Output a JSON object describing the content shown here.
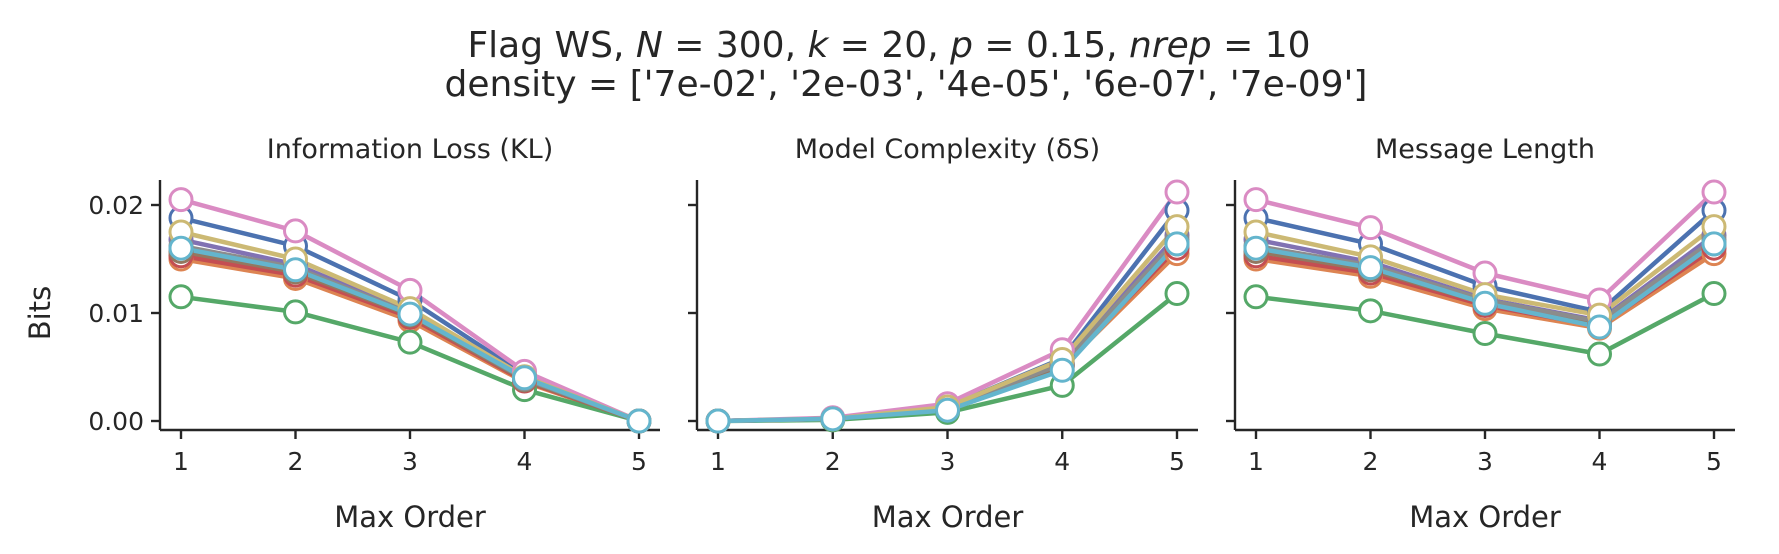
{
  "figure": {
    "suptitle_line1": "Flag WS, N = 300, k = 20, p = 0.15, nrep = 10",
    "suptitle_line2": "density = ['7e-02', '2e-03', '4e-05', '6e-07', '7e-09']",
    "colors": [
      "#4c72b0",
      "#dd8452",
      "#55a868",
      "#c44e52",
      "#8172b3",
      "#937860",
      "#da8bc3",
      "#8c8c8c",
      "#ccb974",
      "#64b5cd"
    ]
  },
  "chart_data": [
    {
      "type": "line",
      "title": "Information Loss (KL)",
      "xlabel": "Max Order",
      "ylabel": "Bits",
      "x": [
        1,
        2,
        3,
        4,
        5
      ],
      "xticks": [
        "1",
        "2",
        "3",
        "4",
        "5"
      ],
      "yticks": [
        "0.00",
        "0.01",
        "0.02"
      ],
      "ylim": [
        -0.001,
        0.0225
      ],
      "grid": false,
      "legend": "none",
      "series": [
        {
          "values": [
            0.0188,
            0.0162,
            0.0112,
            0.0043,
            0.0
          ]
        },
        {
          "values": [
            0.015,
            0.0132,
            0.0093,
            0.0036,
            0.0
          ]
        },
        {
          "values": [
            0.0115,
            0.0101,
            0.0073,
            0.0029,
            0.0
          ]
        },
        {
          "values": [
            0.0153,
            0.0135,
            0.0096,
            0.0037,
            0.0
          ]
        },
        {
          "values": [
            0.0168,
            0.0145,
            0.0101,
            0.0039,
            0.0
          ]
        },
        {
          "values": [
            0.0157,
            0.0138,
            0.0098,
            0.0038,
            0.0
          ]
        },
        {
          "values": [
            0.0205,
            0.0176,
            0.0121,
            0.0046,
            0.0
          ]
        },
        {
          "values": [
            0.0162,
            0.0142,
            0.01,
            0.0039,
            0.0
          ]
        },
        {
          "values": [
            0.0175,
            0.015,
            0.0104,
            0.0041,
            0.0
          ]
        },
        {
          "values": [
            0.016,
            0.014,
            0.0099,
            0.004,
            0.0
          ]
        }
      ]
    },
    {
      "type": "line",
      "title": "Model Complexity (δS)",
      "xlabel": "Max Order",
      "ylabel": "",
      "x": [
        1,
        2,
        3,
        4,
        5
      ],
      "xticks": [
        "1",
        "2",
        "3",
        "4",
        "5"
      ],
      "yticks": [],
      "ylim": [
        -0.001,
        0.0225
      ],
      "grid": false,
      "legend": "none",
      "series": [
        {
          "values": [
            0.0,
            0.0002,
            0.0013,
            0.0058,
            0.0195
          ]
        },
        {
          "values": [
            0.0,
            0.0002,
            0.0011,
            0.005,
            0.0155
          ]
        },
        {
          "values": [
            0.0,
            0.0001,
            0.0008,
            0.0033,
            0.0118
          ]
        },
        {
          "values": [
            0.0,
            0.0002,
            0.0011,
            0.0051,
            0.016
          ]
        },
        {
          "values": [
            0.0,
            0.0002,
            0.0012,
            0.0054,
            0.0172
          ]
        },
        {
          "values": [
            0.0,
            0.0002,
            0.0011,
            0.0052,
            0.0164
          ]
        },
        {
          "values": [
            0.0,
            0.0003,
            0.0016,
            0.0066,
            0.0212
          ]
        },
        {
          "values": [
            0.0,
            0.0002,
            0.0012,
            0.0053,
            0.0168
          ]
        },
        {
          "values": [
            0.0,
            0.0002,
            0.0013,
            0.0057,
            0.018
          ]
        },
        {
          "values": [
            0.0,
            0.0002,
            0.001,
            0.0047,
            0.0164
          ]
        }
      ]
    },
    {
      "type": "line",
      "title": "Message Length",
      "xlabel": "Max Order",
      "ylabel": "",
      "x": [
        1,
        2,
        3,
        4,
        5
      ],
      "xticks": [
        "1",
        "2",
        "3",
        "4",
        "5"
      ],
      "yticks": [],
      "ylim": [
        -0.001,
        0.0225
      ],
      "grid": false,
      "legend": "none",
      "series": [
        {
          "values": [
            0.0188,
            0.0164,
            0.0125,
            0.0101,
            0.0195
          ]
        },
        {
          "values": [
            0.015,
            0.0134,
            0.0104,
            0.0086,
            0.0155
          ]
        },
        {
          "values": [
            0.0115,
            0.0102,
            0.0081,
            0.0062,
            0.0118
          ]
        },
        {
          "values": [
            0.0153,
            0.0137,
            0.0107,
            0.0088,
            0.016
          ]
        },
        {
          "values": [
            0.0168,
            0.0147,
            0.0113,
            0.0093,
            0.0172
          ]
        },
        {
          "values": [
            0.0157,
            0.014,
            0.0109,
            0.009,
            0.0164
          ]
        },
        {
          "values": [
            0.0205,
            0.0179,
            0.0137,
            0.0112,
            0.0212
          ]
        },
        {
          "values": [
            0.0162,
            0.0144,
            0.0112,
            0.0092,
            0.0168
          ]
        },
        {
          "values": [
            0.0175,
            0.0152,
            0.0117,
            0.0098,
            0.018
          ]
        },
        {
          "values": [
            0.016,
            0.0142,
            0.0109,
            0.0087,
            0.0164
          ]
        }
      ]
    }
  ]
}
